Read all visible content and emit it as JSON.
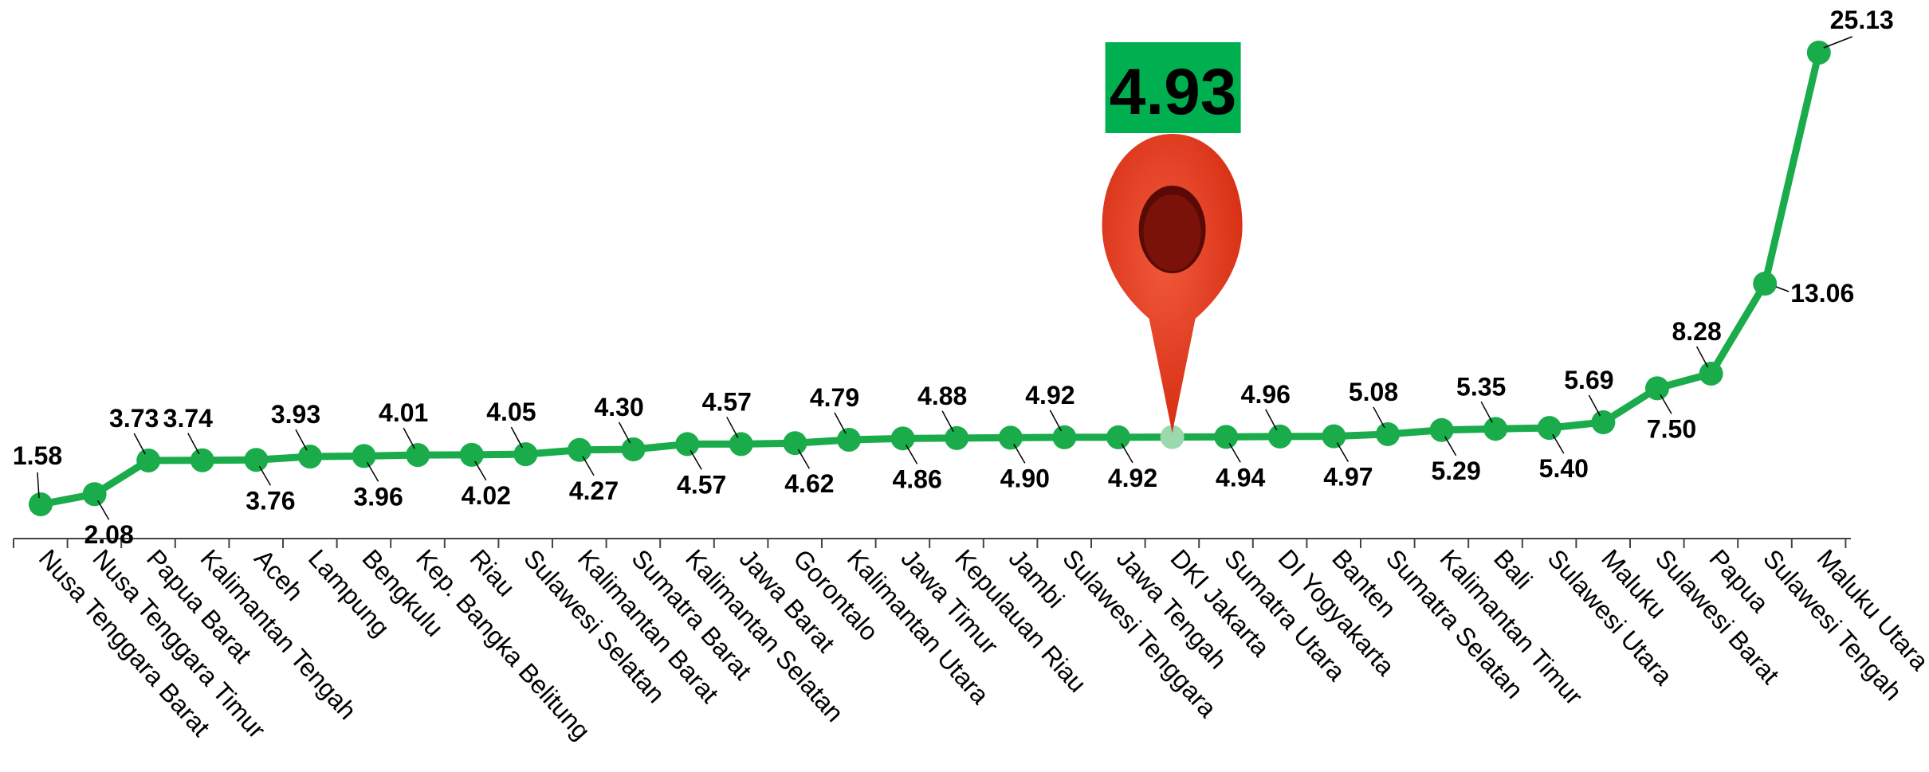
{
  "chart_data": {
    "type": "line",
    "categories": [
      "Nusa Tenggara Barat",
      "Nusa Tenggara Timur",
      "Papua Barat",
      "Kalimantan Tengah",
      "Aceh",
      "Lampung",
      "Bengkulu",
      "Kep. Bangka Belitung",
      "Riau",
      "Sulawesi Selatan",
      "Kalimantan Barat",
      "Sumatra Barat",
      "Kalimantan Selatan",
      "Jawa Barat",
      "Gorontalo",
      "Kalimantan Utara",
      "Jawa Timur",
      "Kepulauan Riau",
      "Jambi",
      "Sulawesi Tenggara",
      "Jawa Tengah",
      "DKI Jakarta",
      "Sumatra Utara",
      "DI Yogyakarta",
      "Banten",
      "Sumatra Selatan",
      "Kalimantan Timur",
      "Bali",
      "Sulawesi Utara",
      "Maluku",
      "Sulawesi Barat",
      "Papua",
      "Sulawesi Tengah",
      "Maluku Utara"
    ],
    "values": [
      1.58,
      2.08,
      3.73,
      3.74,
      3.76,
      3.93,
      3.96,
      4.01,
      4.02,
      4.05,
      4.27,
      4.3,
      4.57,
      4.57,
      4.62,
      4.79,
      4.86,
      4.88,
      4.9,
      4.92,
      4.92,
      4.93,
      4.94,
      4.96,
      4.97,
      5.08,
      5.29,
      5.35,
      5.4,
      5.69,
      7.5,
      8.28,
      13.06,
      25.13
    ],
    "value_labels": [
      "1.58",
      "2.08",
      "3.73",
      "3.74",
      "3.76",
      "3.93",
      "3.96",
      "4.01",
      "4.02",
      "4.05",
      "4.27",
      "4.30",
      "4.57",
      "4.57",
      "4.62",
      "4.79",
      "4.86",
      "4.88",
      "4.90",
      "4.92",
      "4.92",
      "4.93",
      "4.94",
      "4.96",
      "4.97",
      "5.08",
      "5.29",
      "5.35",
      "5.40",
      "5.69",
      "7.50",
      "8.28",
      "13.06",
      "25.13"
    ],
    "label_positions": [
      "above",
      "below",
      "above",
      "above",
      "below",
      "above",
      "below",
      "above",
      "below",
      "above",
      "below",
      "above",
      "below",
      "above",
      "below",
      "above",
      "below",
      "above",
      "below",
      "above",
      "below",
      "none",
      "below",
      "above",
      "below",
      "above",
      "below",
      "above",
      "below",
      "above",
      "below",
      "above",
      "right",
      "above"
    ],
    "highlight": {
      "index": 21,
      "value_label": "4.93",
      "box_color": "#00b050",
      "pin_color": "#e8361e"
    },
    "line_color": "#1aab4b",
    "ylim": [
      0,
      26
    ],
    "title": "",
    "xlabel": "",
    "ylabel": ""
  }
}
